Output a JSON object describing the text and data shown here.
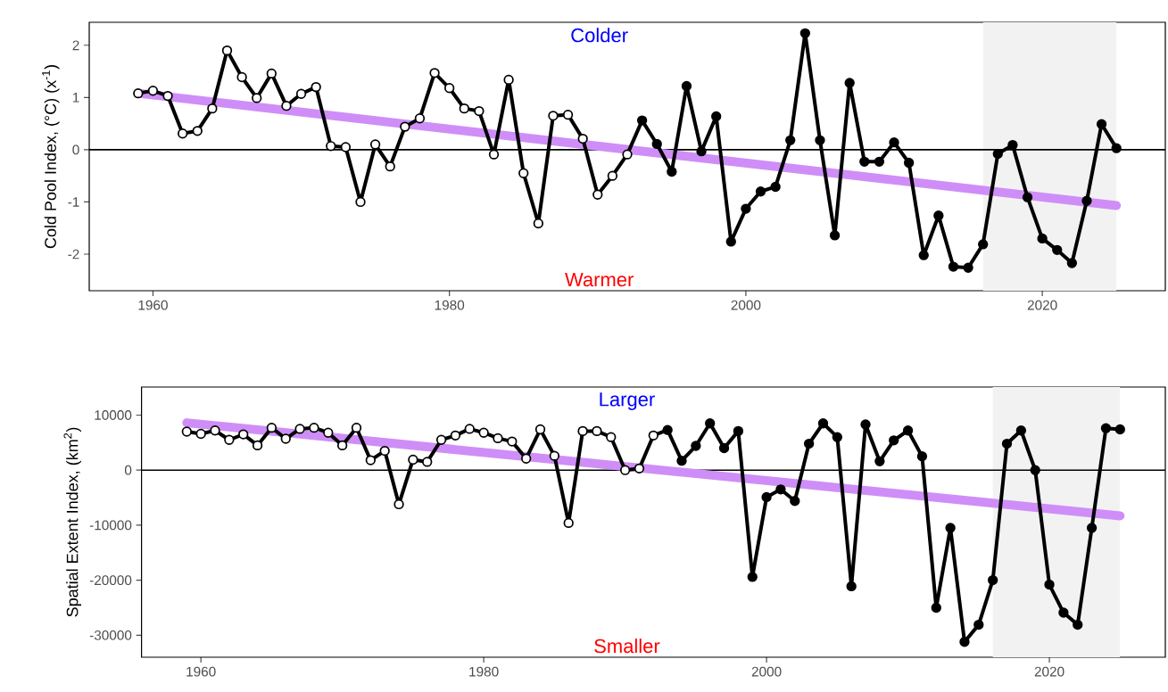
{
  "chart_data": [
    {
      "type": "line",
      "ylabel": "Cold Pool Index, (°C) (x$^{-1}$)",
      "annotations": [
        "Colder",
        "Warmer"
      ],
      "xlim": [
        1955.7,
        2028.3
      ],
      "ylim": [
        -2.7,
        2.44
      ],
      "xticks": [
        1960,
        1980,
        2000,
        2020
      ],
      "yticks": [
        -2,
        -1,
        0,
        1,
        2
      ],
      "grid": false,
      "ref_lines": [
        {
          "axis": "y",
          "value": 0,
          "color": "#000000"
        }
      ],
      "bands": [
        {
          "axis": "x",
          "from": 2016,
          "to": 2025,
          "color": "#f2f2f2"
        }
      ],
      "series": [
        {
          "color": "#cf8ef7",
          "marker": "none",
          "x": [
            1959,
            2025
          ],
          "values": [
            1.08,
            -1.07
          ]
        },
        {
          "color": "#000000",
          "marker": "circle",
          "x": [
            1959,
            1960,
            1961,
            1962,
            1963,
            1964,
            1965,
            1966,
            1967,
            1968,
            1969,
            1970,
            1971,
            1972,
            1973,
            1974,
            1975,
            1976,
            1977,
            1978,
            1979,
            1980,
            1981,
            1982,
            1983,
            1984,
            1985,
            1986,
            1987,
            1988,
            1989,
            1990,
            1991,
            1992,
            1993,
            1994,
            1995,
            1996,
            1997,
            1998,
            1999,
            2000,
            2001,
            2002,
            2003,
            2004,
            2005,
            2006,
            2007,
            2008,
            2009,
            2010,
            2011,
            2012,
            2013,
            2014,
            2015,
            2016,
            2017,
            2018,
            2019,
            2020,
            2021,
            2022,
            2023,
            2024,
            2025
          ],
          "colors": [
            "#ffffff",
            "#ffffff",
            "#ffffff",
            "#ffffff",
            "#ffffff",
            "#ffffff",
            "#ffffff",
            "#ffffff",
            "#ffffff",
            "#ffffff",
            "#ffffff",
            "#ffffff",
            "#ffffff",
            "#ffffff",
            "#ffffff",
            "#ffffff",
            "#ffffff",
            "#ffffff",
            "#ffffff",
            "#ffffff",
            "#ffffff",
            "#ffffff",
            "#ffffff",
            "#ffffff",
            "#ffffff",
            "#ffffff",
            "#ffffff",
            "#ffffff",
            "#ffffff",
            "#ffffff",
            "#ffffff",
            "#ffffff",
            "#ffffff",
            "#ffffff",
            "#000000",
            "#000000",
            "#000000",
            "#000000",
            "#000000",
            "#000000",
            "#000000",
            "#000000",
            "#000000",
            "#000000",
            "#000000",
            "#000000",
            "#000000",
            "#000000",
            "#000000",
            "#000000",
            "#000000",
            "#000000",
            "#000000",
            "#000000",
            "#000000",
            "#000000",
            "#000000",
            "#000000",
            "#000000",
            "#000000",
            "#000000",
            "#000000",
            "#000000",
            "#000000",
            "#000000",
            "#000000",
            "#000000"
          ],
          "values": [
            1.08,
            1.13,
            1.03,
            0.31,
            0.36,
            0.79,
            1.9,
            1.39,
            0.99,
            1.46,
            0.84,
            1.07,
            1.2,
            0.07,
            0.05,
            -1.0,
            0.1,
            -0.32,
            0.44,
            0.6,
            1.47,
            1.18,
            0.79,
            0.74,
            -0.09,
            1.34,
            -0.45,
            -1.41,
            0.65,
            0.67,
            0.21,
            -0.86,
            -0.5,
            -0.09,
            0.56,
            0.11,
            -0.42,
            1.22,
            -0.03,
            0.64,
            -1.76,
            -1.13,
            -0.8,
            -0.71,
            0.18,
            2.23,
            0.18,
            -1.64,
            1.28,
            -0.23,
            -0.23,
            0.14,
            -0.25,
            -2.02,
            -1.26,
            -2.24,
            -2.26,
            -1.81,
            -0.08,
            0.09,
            -0.91,
            -1.7,
            -1.92,
            -2.17,
            -0.98,
            0.49,
            0.03
          ]
        }
      ]
    },
    {
      "type": "line",
      "ylabel": "Spatial Extent Index,  (km$^{2}$)",
      "annotations": [
        "Larger",
        "Smaller"
      ],
      "xlim": [
        1955.8,
        2028.2
      ],
      "ylim": [
        -34000,
        15100
      ],
      "xticks": [
        1960,
        1980,
        2000,
        2020
      ],
      "yticks": [
        -30000,
        -20000,
        -10000,
        0,
        10000
      ],
      "grid": false,
      "ref_lines": [
        {
          "axis": "y",
          "value": 0,
          "color": "#000000"
        }
      ],
      "bands": [
        {
          "axis": "x",
          "from": 2016,
          "to": 2025,
          "color": "#f2f2f2"
        }
      ],
      "series": [
        {
          "color": "#cf8ef7",
          "marker": "none",
          "x": [
            1959,
            2025
          ],
          "values": [
            8600,
            -8300
          ]
        },
        {
          "color": "#000000",
          "marker": "circle",
          "x": [
            1959,
            1960,
            1961,
            1962,
            1963,
            1964,
            1965,
            1966,
            1967,
            1968,
            1969,
            1970,
            1971,
            1972,
            1973,
            1974,
            1975,
            1976,
            1977,
            1978,
            1979,
            1980,
            1981,
            1982,
            1983,
            1984,
            1985,
            1986,
            1987,
            1988,
            1989,
            1990,
            1991,
            1992,
            1993,
            1994,
            1995,
            1996,
            1997,
            1998,
            1999,
            2000,
            2001,
            2002,
            2003,
            2004,
            2005,
            2006,
            2007,
            2008,
            2009,
            2010,
            2011,
            2012,
            2013,
            2014,
            2015,
            2016,
            2017,
            2018,
            2019,
            2020,
            2021,
            2022,
            2023,
            2024,
            2025
          ],
          "colors": [
            "#ffffff",
            "#ffffff",
            "#ffffff",
            "#ffffff",
            "#ffffff",
            "#ffffff",
            "#ffffff",
            "#ffffff",
            "#ffffff",
            "#ffffff",
            "#ffffff",
            "#ffffff",
            "#ffffff",
            "#ffffff",
            "#ffffff",
            "#ffffff",
            "#ffffff",
            "#ffffff",
            "#ffffff",
            "#ffffff",
            "#ffffff",
            "#ffffff",
            "#ffffff",
            "#ffffff",
            "#ffffff",
            "#ffffff",
            "#ffffff",
            "#ffffff",
            "#ffffff",
            "#ffffff",
            "#ffffff",
            "#ffffff",
            "#ffffff",
            "#ffffff",
            "#000000",
            "#000000",
            "#000000",
            "#000000",
            "#000000",
            "#000000",
            "#000000",
            "#000000",
            "#000000",
            "#000000",
            "#000000",
            "#000000",
            "#000000",
            "#000000",
            "#000000",
            "#000000",
            "#000000",
            "#000000",
            "#000000",
            "#000000",
            "#000000",
            "#000000",
            "#000000",
            "#000000",
            "#000000",
            "#000000",
            "#000000",
            "#000000",
            "#000000",
            "#000000",
            "#000000",
            "#000000",
            "#000000"
          ],
          "values": [
            7000,
            6600,
            7200,
            5500,
            6500,
            4500,
            7700,
            5700,
            7500,
            7700,
            6800,
            4500,
            7700,
            1800,
            3500,
            -6200,
            1900,
            1500,
            5500,
            6300,
            7500,
            6800,
            5800,
            5200,
            2100,
            7400,
            2600,
            -9600,
            7100,
            7100,
            6000,
            0,
            300,
            6300,
            7300,
            1700,
            4400,
            8500,
            4000,
            7100,
            -19400,
            -4900,
            -3500,
            -5600,
            4800,
            8500,
            6000,
            -21100,
            8300,
            1600,
            5400,
            7200,
            2500,
            -25000,
            -10500,
            -31200,
            -28100,
            -20000,
            4800,
            7200,
            0,
            -20800,
            -25900,
            -28100,
            -10500,
            7600,
            7400
          ]
        }
      ]
    }
  ]
}
